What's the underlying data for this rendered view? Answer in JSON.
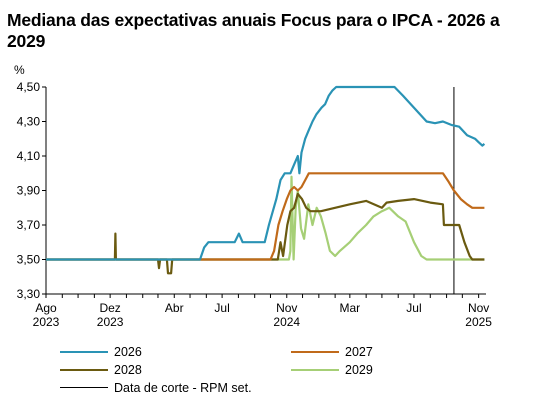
{
  "chart_data": {
    "type": "line",
    "title": "Mediana das expectativas anuais Focus para o IPCA - 2026 a 2029",
    "ylabel": "%",
    "xlabel": "",
    "ylim": [
      3.3,
      4.5
    ],
    "yticks": [
      "3,30",
      "3,50",
      "3,70",
      "3,90",
      "4,10",
      "4,30",
      "4,50"
    ],
    "xlim": [
      "2023-08-01",
      "2025-11-15"
    ],
    "xticks": [
      {
        "label": "Ago",
        "year": "2023",
        "date": "2023-08-01"
      },
      {
        "label": "Dez",
        "year": "2023",
        "date": "2023-12-01"
      },
      {
        "label": "Abr",
        "year": "",
        "date": "2024-04-01"
      },
      {
        "label": "Jul",
        "year": "",
        "date": "2024-07-01"
      },
      {
        "label": "Nov",
        "year": "2024",
        "date": "2024-11-01"
      },
      {
        "label": "Mar",
        "year": "",
        "date": "2025-03-01"
      },
      {
        "label": "Jul",
        "year": "",
        "date": "2025-07-01"
      },
      {
        "label": "Nov",
        "year": "2025",
        "date": "2025-11-01"
      }
    ],
    "cutoff": {
      "label": "Data de corte - RPM set.",
      "date": "2025-09-15"
    },
    "series": [
      {
        "name": "2026",
        "color": "#2a93b5",
        "points": [
          [
            "2023-08-01",
            3.5
          ],
          [
            "2024-05-20",
            3.5
          ],
          [
            "2024-05-28",
            3.57
          ],
          [
            "2024-06-05",
            3.6
          ],
          [
            "2024-07-25",
            3.6
          ],
          [
            "2024-08-02",
            3.65
          ],
          [
            "2024-08-09",
            3.6
          ],
          [
            "2024-09-20",
            3.6
          ],
          [
            "2024-09-28",
            3.7
          ],
          [
            "2024-10-12",
            3.85
          ],
          [
            "2024-10-20",
            3.96
          ],
          [
            "2024-10-28",
            4.0
          ],
          [
            "2024-11-08",
            4.0
          ],
          [
            "2024-11-15",
            4.05
          ],
          [
            "2024-11-22",
            4.1
          ],
          [
            "2024-11-25",
            4.0
          ],
          [
            "2024-11-29",
            4.12
          ],
          [
            "2024-12-06",
            4.2
          ],
          [
            "2024-12-13",
            4.25
          ],
          [
            "2024-12-20",
            4.3
          ],
          [
            "2024-12-27",
            4.34
          ],
          [
            "2025-01-06",
            4.38
          ],
          [
            "2025-01-13",
            4.4
          ],
          [
            "2025-01-20",
            4.45
          ],
          [
            "2025-01-27",
            4.48
          ],
          [
            "2025-02-03",
            4.5
          ],
          [
            "2025-05-01",
            4.5
          ],
          [
            "2025-05-25",
            4.5
          ],
          [
            "2025-06-10",
            4.45
          ],
          [
            "2025-06-25",
            4.4
          ],
          [
            "2025-07-10",
            4.35
          ],
          [
            "2025-07-25",
            4.3
          ],
          [
            "2025-08-10",
            4.29
          ],
          [
            "2025-08-25",
            4.3
          ],
          [
            "2025-09-10",
            4.28
          ],
          [
            "2025-09-25",
            4.27
          ],
          [
            "2025-10-10",
            4.22
          ],
          [
            "2025-10-25",
            4.2
          ],
          [
            "2025-11-01",
            4.18
          ],
          [
            "2025-11-08",
            4.16
          ],
          [
            "2025-11-12",
            4.17
          ]
        ]
      },
      {
        "name": "2027",
        "color": "#c06a1a",
        "points": [
          [
            "2023-08-01",
            3.5
          ],
          [
            "2024-10-01",
            3.5
          ],
          [
            "2024-10-08",
            3.55
          ],
          [
            "2024-10-16",
            3.7
          ],
          [
            "2024-10-24",
            3.78
          ],
          [
            "2024-11-01",
            3.85
          ],
          [
            "2024-11-08",
            3.9
          ],
          [
            "2024-11-15",
            3.92
          ],
          [
            "2024-11-22",
            3.9
          ],
          [
            "2024-11-29",
            3.92
          ],
          [
            "2024-12-06",
            3.96
          ],
          [
            "2024-12-13",
            4.0
          ],
          [
            "2025-08-01",
            4.0
          ],
          [
            "2025-08-25",
            4.0
          ],
          [
            "2025-09-05",
            3.95
          ],
          [
            "2025-09-15",
            3.9
          ],
          [
            "2025-09-28",
            3.85
          ],
          [
            "2025-10-10",
            3.82
          ],
          [
            "2025-10-20",
            3.8
          ],
          [
            "2025-11-12",
            3.8
          ]
        ]
      },
      {
        "name": "2028",
        "color": "#6a5a10",
        "points": [
          [
            "2023-08-01",
            3.5
          ],
          [
            "2023-12-10",
            3.5
          ],
          [
            "2023-12-11",
            3.65
          ],
          [
            "2023-12-12",
            3.5
          ],
          [
            "2024-03-01",
            3.5
          ],
          [
            "2024-03-03",
            3.45
          ],
          [
            "2024-03-05",
            3.5
          ],
          [
            "2024-03-18",
            3.5
          ],
          [
            "2024-03-20",
            3.42
          ],
          [
            "2024-03-26",
            3.42
          ],
          [
            "2024-03-28",
            3.5
          ],
          [
            "2024-10-15",
            3.5
          ],
          [
            "2024-10-20",
            3.6
          ],
          [
            "2024-10-25",
            3.52
          ],
          [
            "2024-11-02",
            3.7
          ],
          [
            "2024-11-08",
            3.78
          ],
          [
            "2024-11-15",
            3.8
          ],
          [
            "2024-11-22",
            3.88
          ],
          [
            "2024-11-30",
            3.85
          ],
          [
            "2024-12-08",
            3.8
          ],
          [
            "2024-12-16",
            3.78
          ],
          [
            "2025-01-05",
            3.78
          ],
          [
            "2025-02-01",
            3.8
          ],
          [
            "2025-03-01",
            3.82
          ],
          [
            "2025-04-01",
            3.84
          ],
          [
            "2025-05-01",
            3.8
          ],
          [
            "2025-05-10",
            3.83
          ],
          [
            "2025-06-01",
            3.84
          ],
          [
            "2025-07-01",
            3.85
          ],
          [
            "2025-08-01",
            3.83
          ],
          [
            "2025-08-25",
            3.82
          ],
          [
            "2025-08-27",
            3.7
          ],
          [
            "2025-09-10",
            3.7
          ],
          [
            "2025-09-25",
            3.7
          ],
          [
            "2025-10-05",
            3.6
          ],
          [
            "2025-10-15",
            3.52
          ],
          [
            "2025-10-20",
            3.5
          ],
          [
            "2025-11-12",
            3.5
          ]
        ]
      },
      {
        "name": "2029",
        "color": "#a6cf76",
        "points": [
          [
            "2023-08-01",
            3.5
          ],
          [
            "2024-11-05",
            3.5
          ],
          [
            "2024-11-08",
            3.55
          ],
          [
            "2024-11-10",
            3.98
          ],
          [
            "2024-11-14",
            3.5
          ],
          [
            "2024-11-18",
            3.8
          ],
          [
            "2024-11-22",
            3.9
          ],
          [
            "2024-11-28",
            3.68
          ],
          [
            "2024-12-04",
            3.62
          ],
          [
            "2024-12-12",
            3.82
          ],
          [
            "2024-12-20",
            3.7
          ],
          [
            "2024-12-28",
            3.8
          ],
          [
            "2025-01-05",
            3.75
          ],
          [
            "2025-01-14",
            3.65
          ],
          [
            "2025-01-22",
            3.55
          ],
          [
            "2025-02-01",
            3.52
          ],
          [
            "2025-02-10",
            3.55
          ],
          [
            "2025-03-01",
            3.6
          ],
          [
            "2025-03-15",
            3.65
          ],
          [
            "2025-04-01",
            3.7
          ],
          [
            "2025-04-15",
            3.75
          ],
          [
            "2025-05-01",
            3.78
          ],
          [
            "2025-05-15",
            3.8
          ],
          [
            "2025-06-01",
            3.75
          ],
          [
            "2025-06-15",
            3.72
          ],
          [
            "2025-07-01",
            3.6
          ],
          [
            "2025-07-15",
            3.52
          ],
          [
            "2025-07-25",
            3.5
          ],
          [
            "2025-11-12",
            3.5
          ]
        ]
      }
    ]
  },
  "legend": [
    {
      "key": "2026",
      "label": "2026",
      "color": "#2a93b5",
      "line": "solid"
    },
    {
      "key": "2027",
      "label": "2027",
      "color": "#c06a1a",
      "line": "solid"
    },
    {
      "key": "2028",
      "label": "2028",
      "color": "#6a5a10",
      "line": "solid"
    },
    {
      "key": "2029",
      "label": "2029",
      "color": "#a6cf76",
      "line": "solid"
    },
    {
      "key": "cutoff",
      "label": "Data de corte - RPM set.",
      "color": "#000000",
      "line": "thin"
    }
  ]
}
